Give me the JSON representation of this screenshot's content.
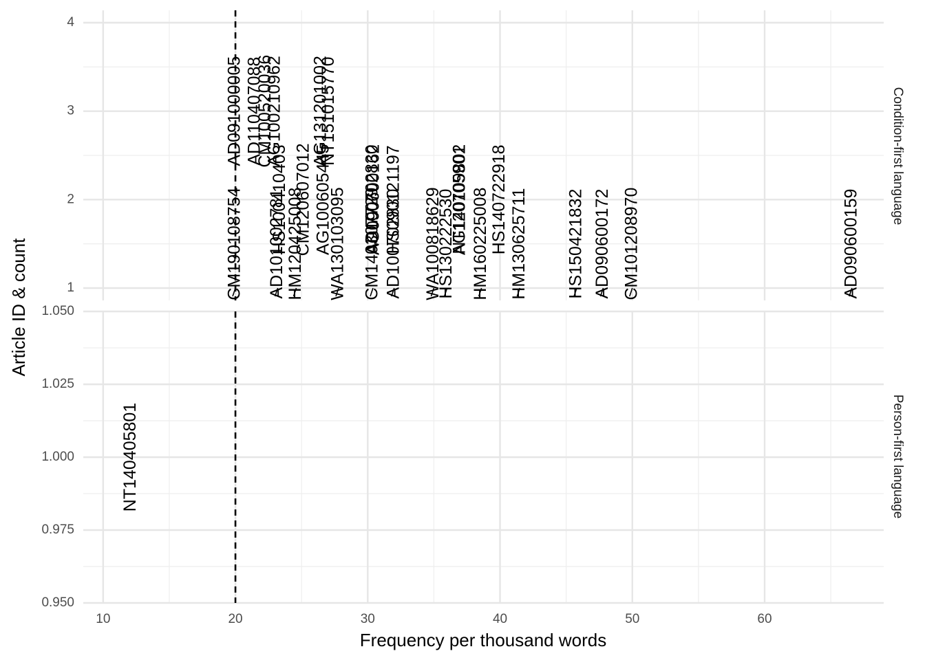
{
  "chart_data": {
    "type": "scatter",
    "xlabel": "Frequency per thousand words",
    "ylabel": "Article ID & count",
    "xlim": [
      8.5,
      69
    ],
    "x_ticks": [
      10,
      20,
      30,
      40,
      50,
      60
    ],
    "reference_line": {
      "x": 20,
      "style": "dashed"
    },
    "grid": true,
    "facets": [
      {
        "strip": "Condition-first language",
        "ylim": [
          0.86,
          4.14
        ],
        "y_ticks": [
          1,
          2,
          3,
          4
        ],
        "y_tick_labels": [
          "1",
          "2",
          "3",
          "4"
        ],
        "points": [
          {
            "label": "AD091000005",
            "x": 20.0,
            "y": 3
          },
          {
            "label": "CM190108754",
            "x": 20.0,
            "y": 1
          },
          {
            "label": "AD110407088",
            "x": 21.5,
            "y": 3
          },
          {
            "label": "CM100520036",
            "x": 22.3,
            "y": 3
          },
          {
            "label": "AD101002781",
            "x": 23.2,
            "y": 1
          },
          {
            "label": "AG100210962",
            "x": 23.0,
            "y": 3
          },
          {
            "label": "HS100410403",
            "x": 23.4,
            "y": 2
          },
          {
            "label": "HM120425008",
            "x": 24.6,
            "y": 1
          },
          {
            "label": "CM120607012",
            "x": 25.2,
            "y": 2
          },
          {
            "label": "AG131201002",
            "x": 26.5,
            "y": 3
          },
          {
            "label": "WA130103095",
            "x": 27.8,
            "y": 1
          },
          {
            "label": "AG100605445",
            "x": 26.7,
            "y": 2
          },
          {
            "label": "NT151015770",
            "x": 27.1,
            "y": 3
          },
          {
            "label": "CM140307729",
            "x": 30.4,
            "y": 1
          },
          {
            "label": "AD100702830",
            "x": 30.4,
            "y": 2
          },
          {
            "label": "AG090600162",
            "x": 30.5,
            "y": 2
          },
          {
            "label": "AD100702830",
            "x": 32.0,
            "y": 1
          },
          {
            "label": "HS090121197",
            "x": 32.0,
            "y": 2
          },
          {
            "label": "WA100818629",
            "x": 35.0,
            "y": 1
          },
          {
            "label": "HS130222530",
            "x": 36.0,
            "y": 1
          },
          {
            "label": "AG140109802",
            "x": 37.0,
            "y": 2
          },
          {
            "label": "HM160225008",
            "x": 38.6,
            "y": 1
          },
          {
            "label": "NT120705901",
            "x": 37.0,
            "y": 2
          },
          {
            "label": "HM130625711",
            "x": 41.5,
            "y": 1
          },
          {
            "label": "HS140722918",
            "x": 40.0,
            "y": 2
          },
          {
            "label": "HS150421832",
            "x": 45.8,
            "y": 1
          },
          {
            "label": "AD090600172",
            "x": 47.8,
            "y": 1
          },
          {
            "label": "CM101208970",
            "x": 50.0,
            "y": 1
          },
          {
            "label": "AD090600159",
            "x": 66.6,
            "y": 1
          }
        ]
      },
      {
        "strip": "Person-first language",
        "ylim": [
          0.95,
          1.05
        ],
        "y_ticks": [
          0.95,
          0.975,
          1.0,
          1.025,
          1.05
        ],
        "y_tick_labels": [
          "0.950",
          "0.975",
          "1.000",
          "1.025",
          "1.050"
        ],
        "points": [
          {
            "label": "NT140405801",
            "x": 12.1,
            "y": 1
          }
        ]
      }
    ]
  }
}
